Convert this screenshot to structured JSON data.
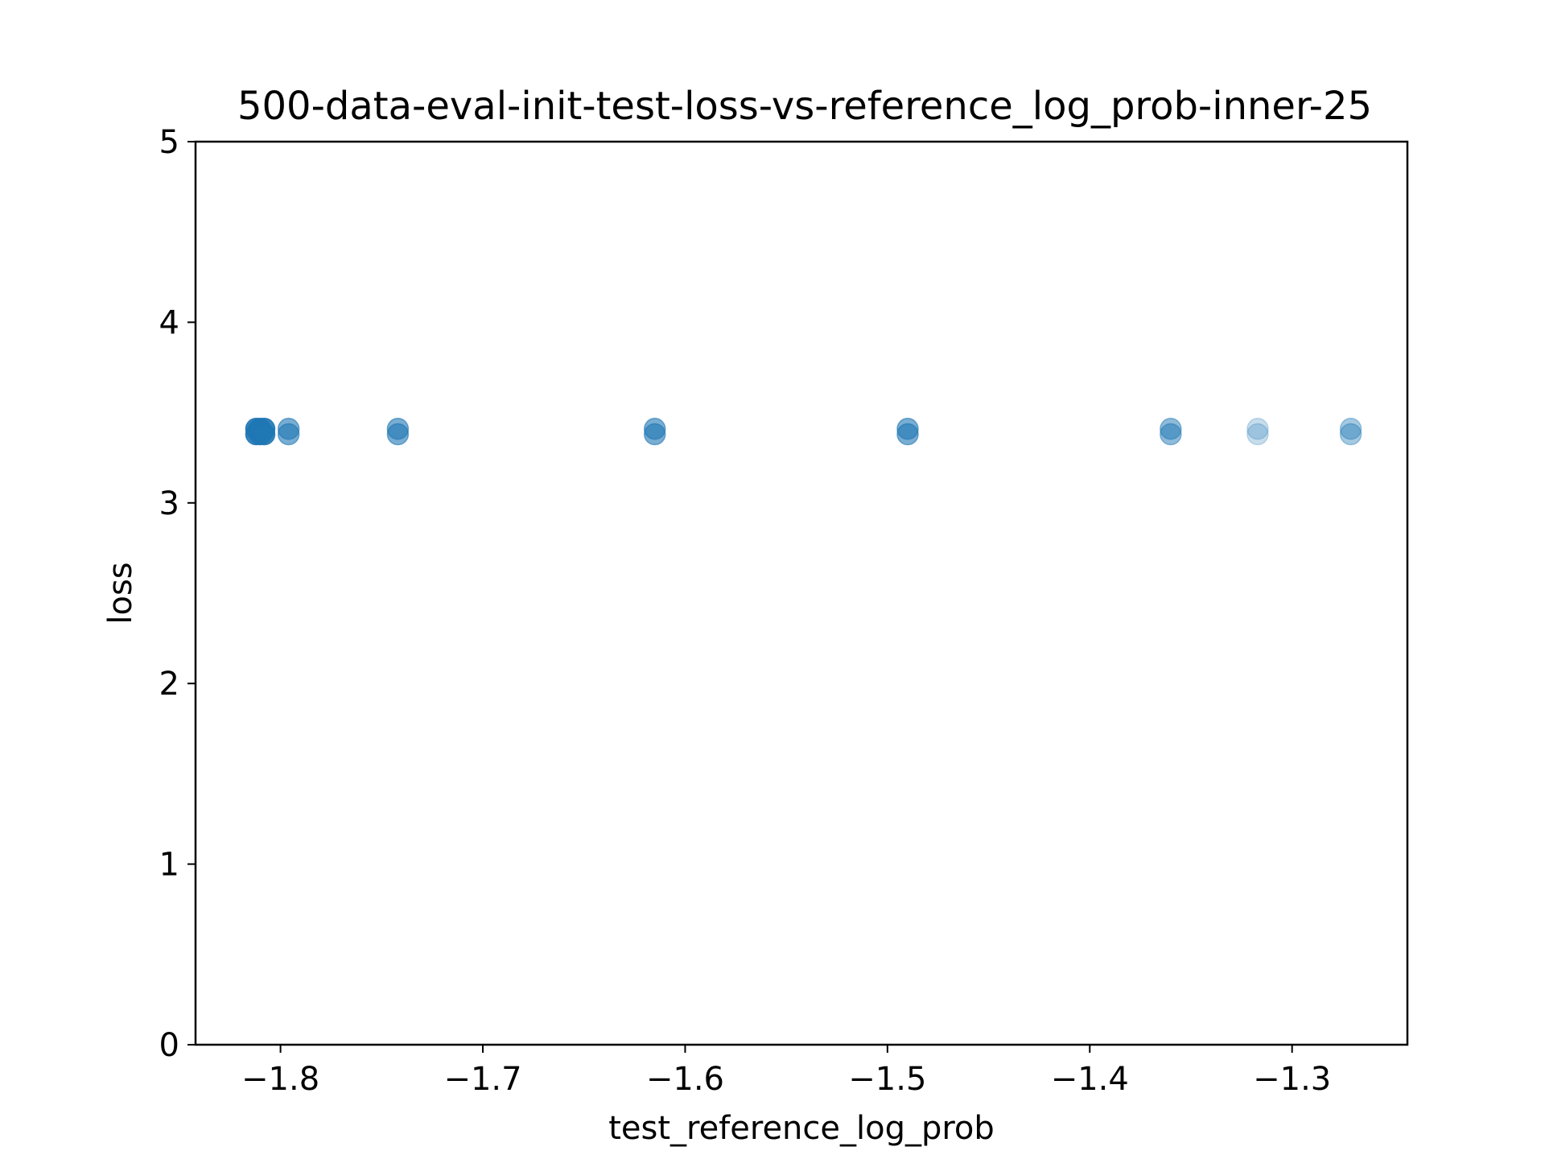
{
  "chart_data": {
    "type": "scatter",
    "title": "500-data-eval-init-test-loss-vs-reference_log_prob-inner-25",
    "xlabel": "test_reference_log_prob",
    "ylabel": "loss",
    "xlim": [
      -1.842,
      -1.243
    ],
    "ylim": [
      0,
      5
    ],
    "xticks": [
      -1.8,
      -1.7,
      -1.6,
      -1.5,
      -1.4,
      -1.3
    ],
    "xtick_labels": [
      "−1.8",
      "−1.7",
      "−1.6",
      "−1.5",
      "−1.4",
      "−1.3"
    ],
    "yticks": [
      0,
      1,
      2,
      3,
      4,
      5
    ],
    "ytick_labels": [
      "0",
      "1",
      "2",
      "3",
      "4",
      "5"
    ],
    "grid": false,
    "legend": "none",
    "marker_color": "#1f77b4",
    "series": [
      {
        "points": [
          {
            "x": -1.812,
            "y": 3.41,
            "alpha": 0.9
          },
          {
            "x": -1.812,
            "y": 3.38,
            "alpha": 0.9
          },
          {
            "x": -1.811,
            "y": 3.4,
            "alpha": 0.9
          },
          {
            "x": -1.81,
            "y": 3.41,
            "alpha": 0.9
          },
          {
            "x": -1.81,
            "y": 3.38,
            "alpha": 0.9
          },
          {
            "x": -1.809,
            "y": 3.39,
            "alpha": 0.9
          },
          {
            "x": -1.808,
            "y": 3.41,
            "alpha": 0.9
          },
          {
            "x": -1.808,
            "y": 3.38,
            "alpha": 0.9
          },
          {
            "x": -1.796,
            "y": 3.41,
            "alpha": 0.6
          },
          {
            "x": -1.796,
            "y": 3.38,
            "alpha": 0.6
          },
          {
            "x": -1.742,
            "y": 3.41,
            "alpha": 0.6
          },
          {
            "x": -1.742,
            "y": 3.38,
            "alpha": 0.6
          },
          {
            "x": -1.615,
            "y": 3.41,
            "alpha": 0.6
          },
          {
            "x": -1.615,
            "y": 3.38,
            "alpha": 0.6
          },
          {
            "x": -1.49,
            "y": 3.41,
            "alpha": 0.6
          },
          {
            "x": -1.49,
            "y": 3.38,
            "alpha": 0.6
          },
          {
            "x": -1.36,
            "y": 3.41,
            "alpha": 0.5
          },
          {
            "x": -1.36,
            "y": 3.38,
            "alpha": 0.5
          },
          {
            "x": -1.317,
            "y": 3.41,
            "alpha": 0.25
          },
          {
            "x": -1.317,
            "y": 3.38,
            "alpha": 0.25
          },
          {
            "x": -1.271,
            "y": 3.41,
            "alpha": 0.4
          },
          {
            "x": -1.271,
            "y": 3.38,
            "alpha": 0.4
          }
        ]
      }
    ]
  }
}
